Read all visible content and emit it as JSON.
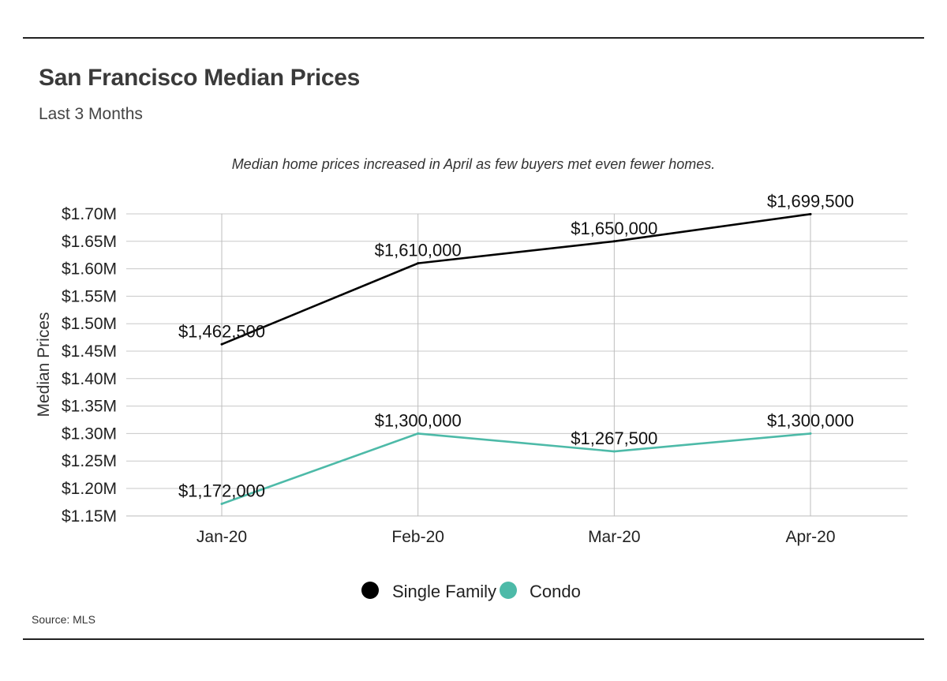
{
  "title": "San Francisco Median Prices",
  "subtitle": "Last 3 Months",
  "source": "Source:  MLS",
  "chart_data": {
    "type": "line",
    "caption": "Median home prices increased in April as few buyers met even fewer homes.",
    "categories": [
      "Jan-20",
      "Feb-20",
      "Mar-20",
      "Apr-20"
    ],
    "ylabel": "Median Prices",
    "xlabel": "",
    "ylim": [
      1130000,
      1700000
    ],
    "yticks": [
      1150000,
      1200000,
      1250000,
      1300000,
      1350000,
      1400000,
      1450000,
      1500000,
      1550000,
      1600000,
      1650000,
      1700000
    ],
    "ytick_labels": [
      "$1.15M",
      "$1.20M",
      "$1.25M",
      "$1.30M",
      "$1.35M",
      "$1.40M",
      "$1.45M",
      "$1.50M",
      "$1.55M",
      "$1.60M",
      "$1.65M",
      "$1.70M"
    ],
    "grid": true,
    "legend_position": "bottom-center",
    "series": [
      {
        "name": "Single Family",
        "color": "#000000",
        "values": [
          1462500,
          1610000,
          1650000,
          1699500
        ],
        "labels": [
          "$1,462,500",
          "$1,610,000",
          "$1,650,000",
          "$1,699,500"
        ]
      },
      {
        "name": "Condo",
        "color": "#4dbaa8",
        "values": [
          1172000,
          1300000,
          1267500,
          1300000
        ],
        "labels": [
          "$1,172,000",
          "$1,300,000",
          "$1,267,500",
          "$1,300,000"
        ]
      }
    ]
  }
}
